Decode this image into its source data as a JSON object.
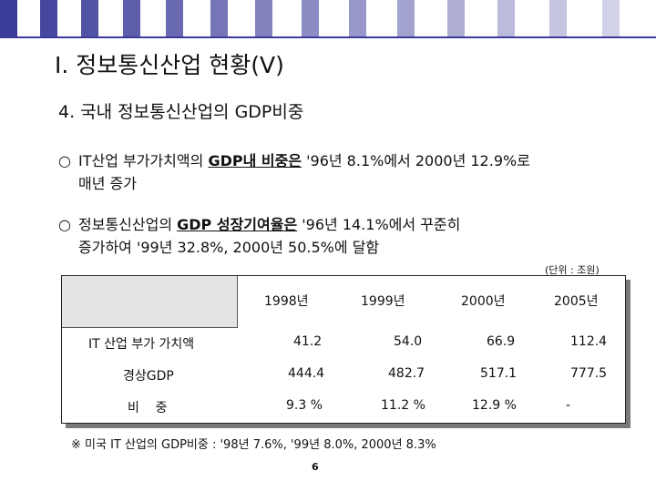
{
  "slide": {
    "title": "Ⅰ. 정보통신산업 현황(Ⅴ)",
    "subtitle": "4. 국내 정보통신산업의 GDP비중",
    "bullets": [
      {
        "mark": "○",
        "pre": "IT산업 부가가치액의 ",
        "bold": "GDP내 비중은",
        "post": " '96년 8.1%에서 2000년 12.9%로",
        "cont": "매년 증가"
      },
      {
        "mark": "○",
        "pre": "정보통신산업의 ",
        "bold": "GDP 성장기여율은",
        "post": " '96년 14.1%에서 꾸준히",
        "cont": "증가하여 '99년 32.8%, 2000년 50.5%에 달함"
      }
    ],
    "unit_note": "(단위 : 조원)",
    "footnote": "※ 미국 IT 산업의 GDP비중 : '98년 7.6%, '99년 8.0%, 2000년 8.3%",
    "page_number": "6"
  },
  "table": {
    "columns": [
      "1998년",
      "1999년",
      "2000년",
      "2005년"
    ],
    "rows": [
      {
        "label": "IT 산업 부가 가치액",
        "values": [
          "41.2",
          "54.0",
          "66.9",
          "112.4"
        ]
      },
      {
        "label": "경상GDP",
        "values": [
          "444.4",
          "482.7",
          "517.1",
          "777.5"
        ]
      },
      {
        "label": "비    중",
        "values": [
          "9.3 %",
          "11.2 %",
          "12.9 %",
          "-"
        ]
      }
    ]
  },
  "colors": {
    "stripe_dark": "#3b3b9a",
    "stripe_light": "#ffffff",
    "rule": "#3b3b9a",
    "table_header_bg": "#e4e4e4"
  }
}
